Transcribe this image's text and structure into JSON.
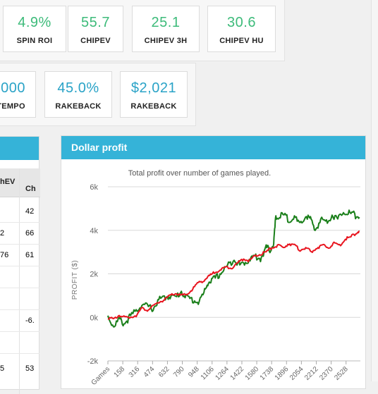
{
  "stats_row1": [
    {
      "value": "4.9%",
      "label": "SPIN ROI"
    },
    {
      "value": "55.7",
      "label": "CHIPEV"
    },
    {
      "value": "25.1",
      "label": "CHIPEV 3H"
    },
    {
      "value": "30.6",
      "label": "CHIPEV HU"
    }
  ],
  "stats_row2": [
    {
      "value": ",000",
      "label": "TEMPO"
    },
    {
      "value": "45.0%",
      "label": "RAKEBACK"
    },
    {
      "value": "$2,021",
      "label": "RAKEBACK"
    }
  ],
  "table": {
    "headers": [
      "hEV",
      "Ch"
    ],
    "rows": [
      [
        "",
        "42"
      ],
      [
        "2",
        "66"
      ],
      [
        "76",
        "61"
      ],
      [
        "",
        ""
      ],
      [
        "",
        ""
      ],
      [
        "",
        "-6."
      ],
      [
        "",
        ""
      ],
      [
        "5",
        "53"
      ]
    ]
  },
  "chart_panel": {
    "title": "Dollar profit"
  },
  "chart_data": {
    "type": "line",
    "title": "Total profit over number of games played.",
    "xlabel": "Games",
    "ylabel": "PROFIT ($)",
    "x_ticks": [
      "Games",
      "158",
      "316",
      "474",
      "632",
      "790",
      "948",
      "1106",
      "1264",
      "1422",
      "1580",
      "1738",
      "1896",
      "2054",
      "2212",
      "2370",
      "2528"
    ],
    "y_ticks": [
      "-2k",
      "0k",
      "2k",
      "4k",
      "6k"
    ],
    "xlim": [
      0,
      2680
    ],
    "ylim": [
      -2000,
      6000
    ],
    "grid": true,
    "series": [
      {
        "color": "#1a7f1a",
        "x": [
          0,
          60,
          120,
          170,
          230,
          300,
          360,
          420,
          480,
          540,
          600,
          660,
          720,
          780,
          840,
          900,
          960,
          1020,
          1060,
          1110,
          1170,
          1230,
          1280,
          1340,
          1400,
          1450,
          1510,
          1560,
          1620,
          1680,
          1720,
          1760,
          1780,
          1800,
          1860,
          1920,
          1980,
          2040,
          2100,
          2150,
          2200,
          2260,
          2320,
          2380,
          2440,
          2500,
          2560,
          2620,
          2670
        ],
        "y": [
          50,
          -400,
          -100,
          -300,
          0,
          300,
          600,
          500,
          400,
          800,
          900,
          1000,
          900,
          1200,
          900,
          800,
          700,
          1100,
          1600,
          1700,
          1900,
          2200,
          2400,
          2700,
          2400,
          2500,
          2700,
          2800,
          2700,
          3200,
          3100,
          3400,
          4500,
          4600,
          4700,
          4500,
          4600,
          4200,
          4700,
          4500,
          4000,
          4500,
          4400,
          4700,
          4500,
          4900,
          4800,
          4700,
          4600
        ]
      },
      {
        "color": "#e8141e",
        "x": [
          0,
          60,
          120,
          170,
          230,
          300,
          360,
          420,
          480,
          540,
          600,
          660,
          720,
          780,
          840,
          900,
          960,
          1020,
          1080,
          1140,
          1200,
          1260,
          1320,
          1380,
          1440,
          1500,
          1560,
          1620,
          1680,
          1740,
          1800,
          1860,
          1920,
          1980,
          2040,
          2100,
          2160,
          2220,
          2280,
          2340,
          2400,
          2460,
          2520,
          2580,
          2640,
          2670
        ],
        "y": [
          0,
          -100,
          100,
          0,
          0,
          100,
          400,
          350,
          500,
          700,
          800,
          1000,
          1100,
          1000,
          1050,
          1300,
          1600,
          1700,
          1900,
          2100,
          2200,
          2300,
          2300,
          2500,
          2700,
          2600,
          2800,
          2900,
          3000,
          3200,
          3300,
          3200,
          3400,
          3300,
          3100,
          3200,
          3000,
          3200,
          3300,
          3200,
          3400,
          3300,
          3600,
          3700,
          3900,
          3950
        ]
      }
    ]
  }
}
